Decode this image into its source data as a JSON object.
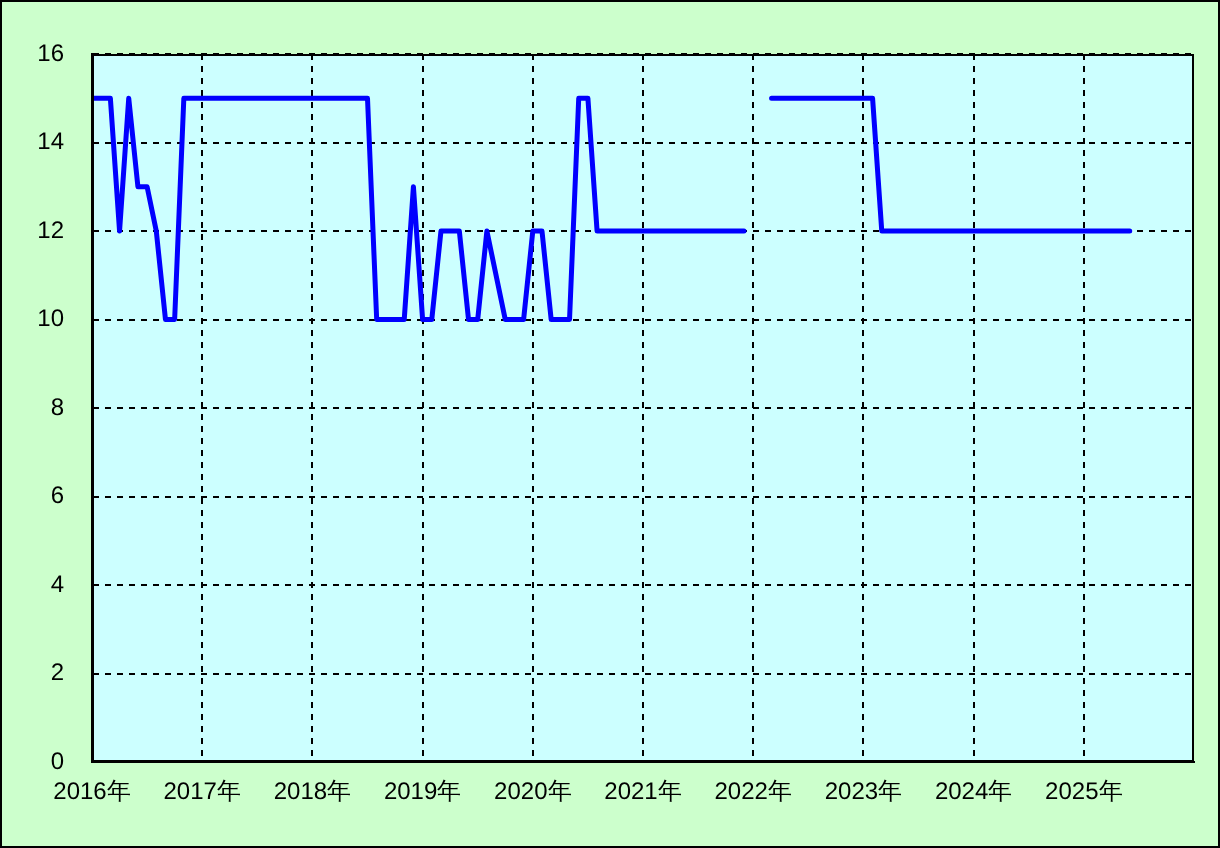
{
  "chart_data": {
    "type": "line",
    "x": [
      "2016-01",
      "2016-03",
      "2016-04",
      "2016-05",
      "2016-06",
      "2016-07",
      "2016-08",
      "2016-09",
      "2016-10",
      "2016-11",
      "2018-07",
      "2018-08",
      "2018-11",
      "2018-12",
      "2019-01",
      "2019-02",
      "2019-03",
      "2019-05",
      "2019-06",
      "2019-07",
      "2019-08",
      "2019-10",
      "2019-12",
      "2020-01",
      "2020-02",
      "2020-03",
      "2020-05",
      "2020-06",
      "2020-07",
      "2020-08",
      "2021-12",
      "2022-01",
      "2022-02",
      "2022-03",
      "2023-02",
      "2023-03",
      "2025-06"
    ],
    "series": [
      {
        "color": "#0000ff",
        "values": [
          15,
          15,
          12,
          15,
          13,
          13,
          12,
          10,
          10,
          15,
          15,
          10,
          10,
          13,
          10,
          10,
          12,
          12,
          10,
          10,
          12,
          10,
          10,
          12,
          12,
          10,
          10,
          15,
          15,
          12,
          12,
          null,
          null,
          15,
          15,
          12,
          12
        ]
      }
    ],
    "xlim": [
      "2016-01",
      "2026-01"
    ],
    "xticks": [
      {
        "value": "2016-01",
        "label": "2016年"
      },
      {
        "value": "2017-01",
        "label": "2017年"
      },
      {
        "value": "2018-01",
        "label": "2018年"
      },
      {
        "value": "2019-01",
        "label": "2019年"
      },
      {
        "value": "2020-01",
        "label": "2020年"
      },
      {
        "value": "2021-01",
        "label": "2021年"
      },
      {
        "value": "2022-01",
        "label": "2022年"
      },
      {
        "value": "2023-01",
        "label": "2023年"
      },
      {
        "value": "2024-01",
        "label": "2024年"
      },
      {
        "value": "2025-01",
        "label": "2025年"
      }
    ],
    "ylim": [
      0,
      16
    ],
    "yticks": [
      0,
      2,
      4,
      6,
      8,
      10,
      12,
      14,
      16
    ],
    "grid": true,
    "line_style": "solid"
  }
}
